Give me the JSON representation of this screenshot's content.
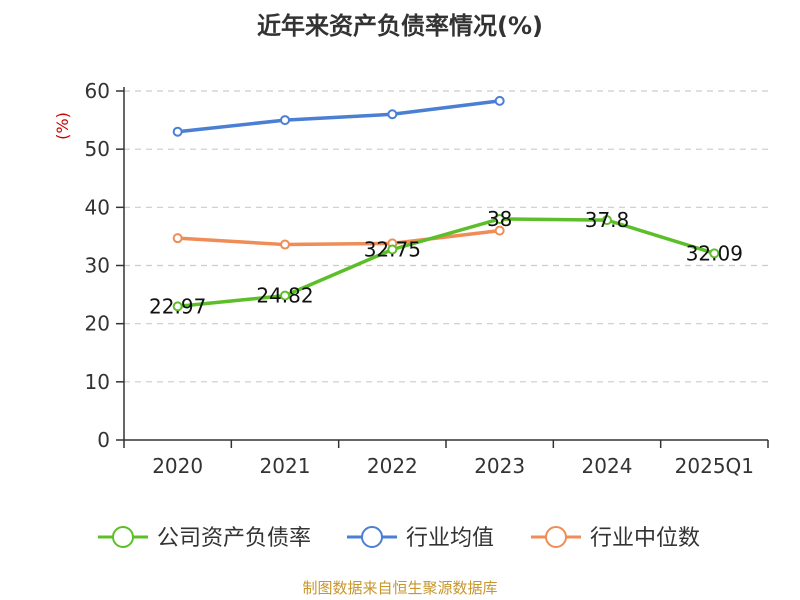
{
  "chart_data": {
    "type": "line",
    "title": "近年来资产负债率情况(%)",
    "ylabel": "(%)",
    "categories": [
      "2020",
      "2021",
      "2022",
      "2023",
      "2024",
      "2025Q1"
    ],
    "ylim": [
      0,
      60
    ],
    "yticks": [
      0,
      10,
      20,
      30,
      40,
      50,
      60
    ],
    "grid": true,
    "legend_position": "bottom",
    "series": [
      {
        "name": "公司资产负债率",
        "color": "#5cbf2a",
        "values": [
          22.97,
          24.82,
          32.75,
          38,
          37.8,
          32.09
        ],
        "labels": [
          "22.97",
          "24.82",
          "32.75",
          "38",
          "37.8",
          "32.09"
        ]
      },
      {
        "name": "行业均值",
        "color": "#4a7fd4",
        "values": [
          53,
          55,
          56,
          58.3,
          null,
          null
        ]
      },
      {
        "name": "行业中位数",
        "color": "#f08c55",
        "values": [
          34.7,
          33.6,
          33.8,
          36,
          null,
          null
        ]
      }
    ]
  },
  "source": "制图数据来自恒生聚源数据库"
}
